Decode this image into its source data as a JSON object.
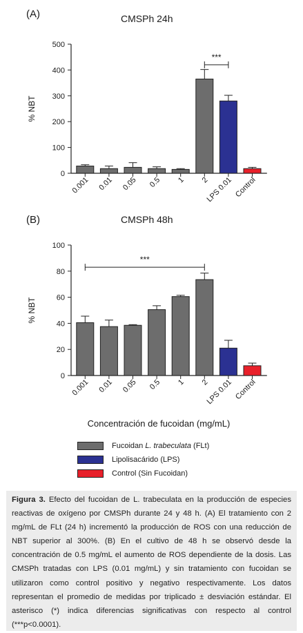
{
  "figure": {
    "panelA": {
      "tag": "(A)",
      "title": "CMSPh 24h",
      "ylabel": "% NBT",
      "sig_label": "***"
    },
    "panelB": {
      "tag": "(B)",
      "title": "CMSPh 48h",
      "ylabel": "% NBT",
      "sig_label": "***"
    },
    "xlabel": "Concentración de fucoidan (mg/mL)",
    "legend": [
      {
        "prefix": "Fucoidan ",
        "italic": "L. trabeculata",
        "suffix": " (FLt)",
        "color": "#6d6d6d"
      },
      {
        "prefix": "Lipolisacárido (LPS)",
        "italic": "",
        "suffix": "",
        "color": "#2b3192"
      },
      {
        "prefix": "Control (Sin Fucoidan)",
        "italic": "",
        "suffix": "",
        "color": "#e8202a"
      }
    ]
  },
  "chart_data": [
    {
      "type": "bar",
      "title": "CMSPh 24h",
      "xlabel": "Concentración de fucoidan (mg/mL)",
      "ylabel": "% NBT",
      "ylim": [
        0,
        500
      ],
      "yticks": [
        0,
        100,
        200,
        300,
        400,
        500
      ],
      "categories": [
        "0.001",
        "0.01",
        "0.05",
        "0.5",
        "1",
        "2",
        "LPS 0.01",
        "Control"
      ],
      "values": [
        28,
        18,
        23,
        18,
        15,
        365,
        280,
        18
      ],
      "errors": [
        5,
        10,
        18,
        7,
        3,
        37,
        22,
        5
      ],
      "colors": [
        "#6d6d6d",
        "#6d6d6d",
        "#6d6d6d",
        "#6d6d6d",
        "#6d6d6d",
        "#6d6d6d",
        "#2b3192",
        "#e8202a"
      ],
      "significance": {
        "from": 5,
        "to": 6,
        "y": 420,
        "label": "***"
      },
      "grid": false
    },
    {
      "type": "bar",
      "title": "CMSPh 48h",
      "xlabel": "Concentración de fucoidan (mg/mL)",
      "ylabel": "% NBT",
      "ylim": [
        0,
        100
      ],
      "yticks": [
        0,
        20,
        40,
        60,
        80,
        100
      ],
      "categories": [
        "0.001",
        "0.01",
        "0.05",
        "0.5",
        "1",
        "2",
        "LPS 0.01",
        "Control"
      ],
      "values": [
        40.5,
        37.5,
        38.5,
        50.5,
        60.5,
        73.5,
        21,
        7.5
      ],
      "errors": [
        5,
        5,
        0.5,
        3,
        1,
        5,
        6,
        2
      ],
      "colors": [
        "#6d6d6d",
        "#6d6d6d",
        "#6d6d6d",
        "#6d6d6d",
        "#6d6d6d",
        "#6d6d6d",
        "#2b3192",
        "#e8202a"
      ],
      "significance": {
        "from": 0,
        "to": 5,
        "y": 83,
        "label": "***"
      },
      "grid": false
    }
  ],
  "caption": {
    "bold": "Figura 3.",
    "text": " Efecto del fucoidan de L. trabeculata en la producción de especies reactivas de oxígeno por CMSPh durante 24 y 48 h. (A) El tratamiento con 2 mg/mL de FLt (24 h) incrementó la producción de ROS con una reducción de NBT superior al 300%. (B) En el cultivo de 48 h se observó desde la concentración de 0.5 mg/mL el aumento de ROS dependiente de la dosis. Las CMSPh tratadas con LPS (0.01 mg/mL) y sin tratamiento con fucoidan se utilizaron como control positivo y negativo respectivamente. Los datos representan el promedio de medidas por triplicado ± desviación estándar. El asterisco (*) indica diferencias significativas con respecto al control (***p<0.0001)."
  }
}
